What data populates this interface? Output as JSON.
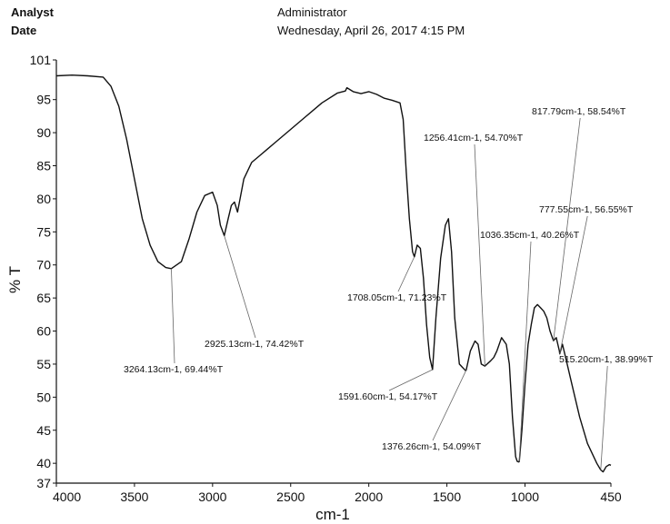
{
  "header": {
    "analyst_label": "Analyst",
    "date_label": "Date",
    "operator": "Administrator",
    "timestamp": "Wednesday, April 26, 2017 4:15 PM"
  },
  "chart_data": {
    "type": "line",
    "title": "",
    "xlabel": "cm-1",
    "ylabel": "% T",
    "xlim": [
      4000,
      450
    ],
    "ylim": [
      37,
      101
    ],
    "x_reversed": true,
    "grid": false,
    "x_ticks": [
      4000,
      3500,
      3000,
      2500,
      2000,
      1500,
      1000,
      450
    ],
    "y_ticks": [
      37,
      40,
      45,
      50,
      55,
      60,
      65,
      70,
      75,
      80,
      85,
      90,
      95,
      101
    ],
    "series": [
      {
        "color": "#111111",
        "x": [
          4000,
          3900,
          3800,
          3700,
          3650,
          3600,
          3550,
          3500,
          3450,
          3400,
          3350,
          3300,
          3264.13,
          3200,
          3150,
          3100,
          3050,
          3000,
          2970,
          2950,
          2925.13,
          2900,
          2880,
          2860,
          2840,
          2800,
          2750,
          2700,
          2650,
          2600,
          2500,
          2400,
          2300,
          2200,
          2150,
          2140,
          2100,
          2050,
          2000,
          1950,
          1900,
          1850,
          1800,
          1780,
          1760,
          1740,
          1720,
          1708.05,
          1690,
          1670,
          1650,
          1630,
          1610,
          1591.6,
          1570,
          1540,
          1510,
          1490,
          1470,
          1450,
          1420,
          1380,
          1376.26,
          1350,
          1320,
          1300,
          1280,
          1256.41,
          1220,
          1200,
          1180,
          1150,
          1120,
          1100,
          1080,
          1060,
          1050,
          1040,
          1036.35,
          1020,
          1000,
          980,
          960,
          940,
          920,
          900,
          880,
          860,
          840,
          817.79,
          800,
          780,
          777.55,
          760,
          740,
          700,
          650,
          600,
          560,
          540,
          515.2,
          500,
          480,
          460,
          450
        ],
        "y": [
          98.6,
          98.7,
          98.6,
          98.4,
          97,
          94,
          89,
          83,
          77,
          73,
          70.5,
          69.6,
          69.44,
          70.5,
          74,
          78,
          80.5,
          81,
          79,
          76,
          74.42,
          77,
          79,
          79.5,
          78,
          83,
          85.5,
          86.5,
          87.5,
          88.5,
          90.5,
          92.5,
          94.5,
          96,
          96.3,
          96.8,
          96.2,
          95.9,
          96.2,
          95.8,
          95.2,
          94.9,
          94.5,
          92,
          84,
          77,
          72,
          71.23,
          73,
          72.5,
          68,
          61,
          56,
          54.17,
          62,
          71,
          76,
          77,
          72,
          62,
          55,
          54,
          54.09,
          57,
          58.5,
          58,
          55,
          54.7,
          55.5,
          56,
          57,
          59,
          58,
          55,
          47,
          41,
          40.3,
          40.2,
          40.26,
          45,
          52,
          58,
          61,
          63.5,
          64,
          63.5,
          63,
          62,
          60,
          58.54,
          59,
          57,
          56.55,
          58,
          56,
          52,
          47,
          43,
          41,
          40,
          38.99,
          38.7,
          39.5,
          39.8,
          39.7
        ]
      }
    ],
    "annotations": [
      {
        "id": "a1",
        "text": "3264.13cm-1, 69.44%T",
        "x": 3264.13,
        "y": 69.44
      },
      {
        "id": "a2",
        "text": "2925.13cm-1, 74.42%T",
        "x": 2925.13,
        "y": 74.42
      },
      {
        "id": "a3",
        "text": "1708.05cm-1, 71.23%T",
        "x": 1708.05,
        "y": 71.23
      },
      {
        "id": "a4",
        "text": "1591.60cm-1, 54.17%T",
        "x": 1591.6,
        "y": 54.17
      },
      {
        "id": "a5",
        "text": "1376.26cm-1, 54.09%T",
        "x": 1376.26,
        "y": 54.09
      },
      {
        "id": "a6",
        "text": "1256.41cm-1, 54.70%T",
        "x": 1256.41,
        "y": 54.7
      },
      {
        "id": "a7",
        "text": "1036.35cm-1, 40.26%T",
        "x": 1036.35,
        "y": 40.26
      },
      {
        "id": "a8",
        "text": "817.79cm-1, 58.54%T",
        "x": 817.79,
        "y": 58.54
      },
      {
        "id": "a9",
        "text": "777.55cm-1, 56.55%T",
        "x": 777.55,
        "y": 56.55
      },
      {
        "id": "a10",
        "text": "515.20cm-1, 38.99%T",
        "x": 515.2,
        "y": 38.99
      }
    ]
  }
}
